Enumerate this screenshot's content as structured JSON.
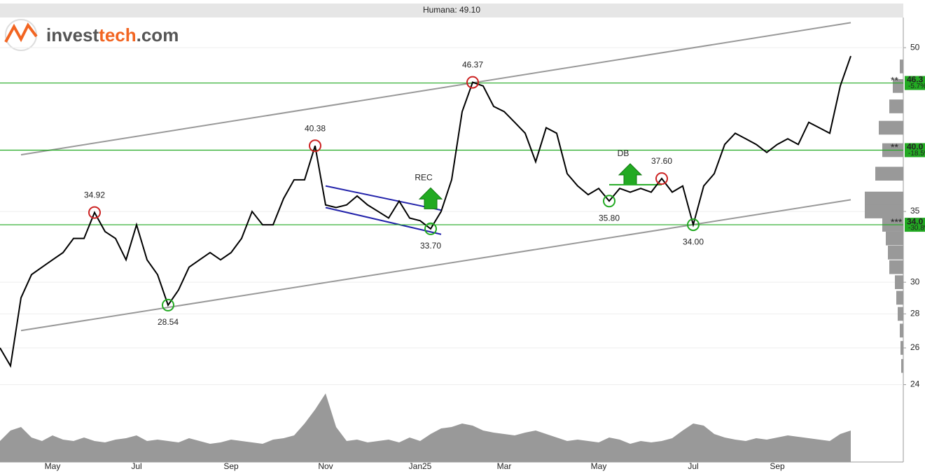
{
  "logo": {
    "part1": "invest",
    "part2": "tech",
    "part3": ".com"
  },
  "chart_data": {
    "type": "line",
    "title": "Humana: 49.10",
    "categories": [
      null,
      null,
      null,
      null,
      null,
      "May",
      null,
      null,
      null,
      null,
      null,
      null,
      null,
      "Jul",
      null,
      null,
      null,
      null,
      null,
      null,
      null,
      null,
      "Sep",
      null,
      null,
      null,
      null,
      null,
      null,
      null,
      null,
      "Nov",
      null,
      null,
      null,
      null,
      null,
      null,
      null,
      null,
      "Jan25",
      null,
      null,
      null,
      null,
      null,
      null,
      null,
      "Mar",
      null,
      null,
      null,
      null,
      null,
      null,
      null,
      null,
      "May",
      null,
      null,
      null,
      null,
      null,
      null,
      null,
      null,
      "Jul",
      null,
      null,
      null,
      null,
      null,
      null,
      null,
      "Sep",
      null,
      null,
      null,
      null,
      null,
      null,
      null
    ],
    "series": [
      {
        "name": "Humana",
        "color": "#000000",
        "values": [
          26,
          25,
          29,
          30.5,
          31,
          31.5,
          32,
          33,
          33,
          34.92,
          33.5,
          33,
          31.5,
          34,
          31.5,
          30.5,
          28.54,
          29.5,
          31,
          31.5,
          32,
          31.5,
          32,
          33,
          35,
          34,
          34,
          36,
          37.5,
          37.5,
          40.38,
          35.5,
          35.3,
          35.5,
          36.2,
          35.5,
          35,
          34.5,
          35.8,
          34.5,
          34.3,
          33.7,
          35,
          37.5,
          43.5,
          46.37,
          46,
          44,
          43.5,
          42.5,
          41.5,
          39,
          42,
          41.5,
          38,
          37,
          36.3,
          36.8,
          35.8,
          36.8,
          36.5,
          36.8,
          36.5,
          37.6,
          36.5,
          37,
          34,
          37,
          38,
          40.5,
          41.5,
          41,
          40.5,
          39.8,
          40.5,
          41,
          40.5,
          42.5,
          42,
          41.5,
          46,
          49.1
        ]
      }
    ],
    "volume": {
      "color": "#999999",
      "ylim": [
        0,
        100
      ],
      "values": [
        30,
        45,
        50,
        35,
        30,
        38,
        32,
        30,
        35,
        30,
        28,
        32,
        34,
        38,
        30,
        32,
        30,
        28,
        34,
        30,
        26,
        28,
        32,
        30,
        28,
        26,
        32,
        34,
        38,
        55,
        75,
        98,
        50,
        30,
        32,
        28,
        30,
        32,
        28,
        35,
        30,
        40,
        48,
        50,
        55,
        52,
        45,
        42,
        40,
        38,
        42,
        45,
        40,
        35,
        30,
        32,
        30,
        28,
        35,
        32,
        26,
        30,
        28,
        30,
        34,
        45,
        55,
        52,
        40,
        35,
        32,
        30,
        34,
        32,
        35,
        38,
        36,
        34,
        32,
        30,
        40,
        45
      ]
    },
    "ylim": [
      23.8,
      53.4
    ],
    "log_scale": true,
    "yticks": [
      24,
      26,
      28,
      30,
      35,
      50
    ],
    "grid": true,
    "extremes": [
      {
        "x": 9,
        "value": 34.92,
        "label": "34.92",
        "color": "#cc2222"
      },
      {
        "x": 16,
        "value": 28.54,
        "label": "28.54",
        "color": "#22aa22"
      },
      {
        "x": 30,
        "value": 40.38,
        "label": "40.38",
        "color": "#cc2222"
      },
      {
        "x": 41,
        "value": 33.7,
        "label": "33.70",
        "color": "#22aa22"
      },
      {
        "x": 45,
        "value": 46.37,
        "label": "46.37",
        "color": "#cc2222"
      },
      {
        "x": 58,
        "value": 35.8,
        "label": "35.80",
        "color": "#22aa22"
      },
      {
        "x": 63,
        "value": 37.6,
        "label": "37.60",
        "color": "#cc2222"
      },
      {
        "x": 66,
        "value": 34,
        "label": "34.00",
        "color": "#22aa22"
      }
    ],
    "levels": [
      {
        "value": 46.3,
        "label": "46.3",
        "change": "-5.7%",
        "stars": "**"
      },
      {
        "value": 40,
        "label": "40.0",
        "change": "-18.5%",
        "stars": "**"
      },
      {
        "value": 34,
        "label": "34.0",
        "change": "-30.8%",
        "stars": "***"
      }
    ],
    "level_color": "#22aa22",
    "trend_channel": {
      "color": "#999999",
      "x": [
        2,
        81
      ],
      "upper": [
        39.6,
        52.8
      ],
      "lower": [
        27.0,
        35.9
      ]
    },
    "falling_channel": {
      "color": "#2222aa",
      "x": [
        31,
        42
      ],
      "upper": [
        37.0,
        35.1
      ],
      "lower": [
        35.3,
        33.3
      ]
    },
    "signals": [
      {
        "label": "REC",
        "x": 41,
        "value": 35.2
      },
      {
        "label": "DB",
        "x": 60,
        "value": 37.1
      }
    ],
    "profile": {
      "color": "#999999",
      "xlim": [
        0,
        60
      ],
      "prices": [
        48,
        46,
        44,
        42,
        40,
        38,
        36,
        35,
        34,
        33,
        32,
        31,
        30,
        29,
        28,
        27,
        26,
        25
      ],
      "sizes": [
        5,
        15,
        20,
        35,
        30,
        40,
        55,
        55,
        30,
        25,
        22,
        20,
        12,
        10,
        8,
        5,
        4,
        3
      ]
    }
  }
}
